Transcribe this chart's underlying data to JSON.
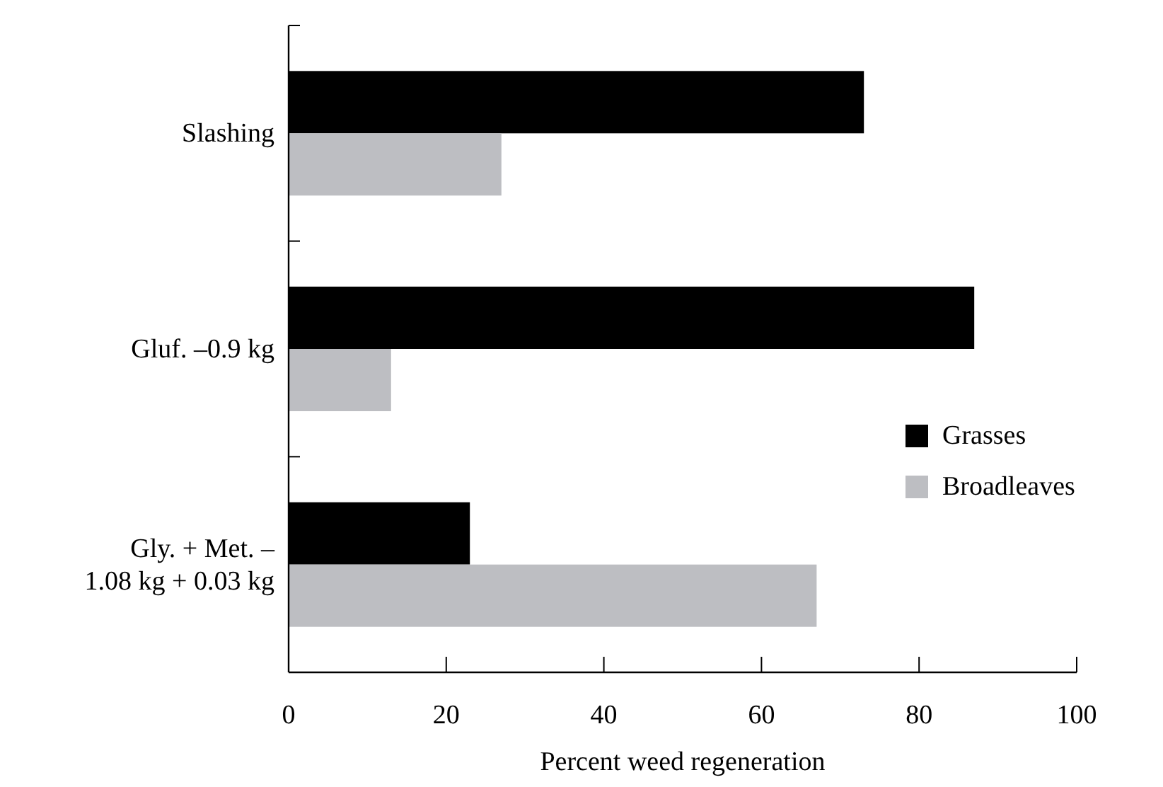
{
  "chart_data": {
    "type": "bar",
    "orientation": "horizontal",
    "categories": [
      "Slashing",
      "Gluf. –0.9 kg",
      "Gly. + Met. –\n1.08 kg + 0.03 kg"
    ],
    "series": [
      {
        "name": "Grasses",
        "color": "#000000",
        "values": [
          73,
          87,
          23
        ]
      },
      {
        "name": "Broadleaves",
        "color": "#bdbec2",
        "values": [
          27,
          13,
          67
        ]
      }
    ],
    "xlabel": "Percent weed regeneration",
    "xlim": [
      0,
      100
    ],
    "xticks": [
      0,
      20,
      40,
      60,
      80,
      100
    ],
    "grid": false,
    "legend": "right"
  }
}
